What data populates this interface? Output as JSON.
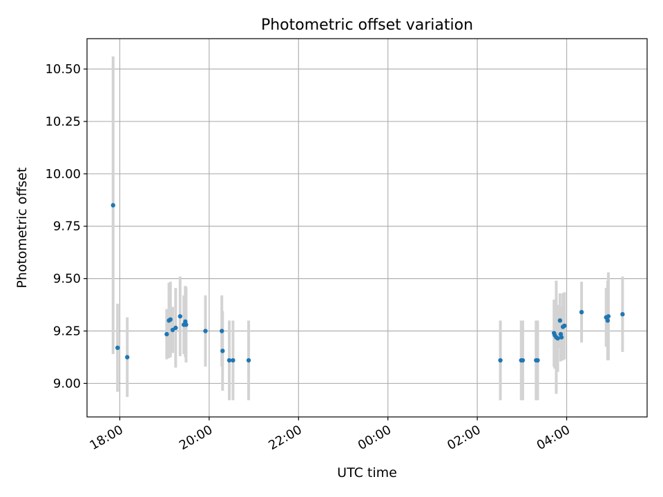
{
  "chart_data": {
    "type": "scatter",
    "title": "Photometric offset variation",
    "xlabel": "UTC time",
    "ylabel": "Photometric offset",
    "x_axis": {
      "kind": "time",
      "start": "2000-01-01T17:16",
      "end": "2000-01-02T05:48",
      "ticks": [
        {
          "t": "2000-01-01T18:00",
          "label": "18:00"
        },
        {
          "t": "2000-01-01T20:00",
          "label": "20:00"
        },
        {
          "t": "2000-01-01T22:00",
          "label": "22:00"
        },
        {
          "t": "2000-01-02T00:00",
          "label": "00:00"
        },
        {
          "t": "2000-01-02T02:00",
          "label": "02:00"
        },
        {
          "t": "2000-01-02T04:00",
          "label": "04:00"
        }
      ]
    },
    "ylim": [
      8.84,
      10.645
    ],
    "yticks": [
      {
        "v": 9.0,
        "label": "9.00"
      },
      {
        "v": 9.25,
        "label": "9.25"
      },
      {
        "v": 9.5,
        "label": "9.50"
      },
      {
        "v": 9.75,
        "label": "9.75"
      },
      {
        "v": 10.0,
        "label": "10.00"
      },
      {
        "v": 10.25,
        "label": "10.25"
      },
      {
        "v": 10.5,
        "label": "10.50"
      }
    ],
    "grid": true,
    "marker_color": "#1f77b4",
    "errorbar_color": "#d3d3d3",
    "points": [
      {
        "t": "2000-01-01T17:51",
        "y": 9.85,
        "err": 0.71
      },
      {
        "t": "2000-01-01T17:57",
        "y": 9.17,
        "err": 0.21
      },
      {
        "t": "2000-01-01T18:10",
        "y": 9.125,
        "err": 0.19
      },
      {
        "t": "2000-01-01T19:03",
        "y": 9.235,
        "err": 0.12
      },
      {
        "t": "2000-01-01T19:06",
        "y": 9.3,
        "err": 0.18
      },
      {
        "t": "2000-01-01T19:08",
        "y": 9.305,
        "err": 0.18
      },
      {
        "t": "2000-01-01T19:11",
        "y": 9.255,
        "err": 0.11
      },
      {
        "t": "2000-01-01T19:15",
        "y": 9.265,
        "err": 0.19
      },
      {
        "t": "2000-01-01T19:21",
        "y": 9.32,
        "err": 0.19
      },
      {
        "t": "2000-01-01T19:26",
        "y": 9.28,
        "err": 0.14
      },
      {
        "t": "2000-01-01T19:28",
        "y": 9.295,
        "err": 0.17
      },
      {
        "t": "2000-01-01T19:29",
        "y": 9.28,
        "err": 0.18
      },
      {
        "t": "2000-01-01T19:55",
        "y": 9.25,
        "err": 0.17
      },
      {
        "t": "2000-01-01T20:17",
        "y": 9.25,
        "err": 0.17
      },
      {
        "t": "2000-01-01T20:18",
        "y": 9.155,
        "err": 0.19
      },
      {
        "t": "2000-01-01T20:27",
        "y": 9.11,
        "err": 0.19
      },
      {
        "t": "2000-01-01T20:32",
        "y": 9.11,
        "err": 0.19
      },
      {
        "t": "2000-01-01T20:53",
        "y": 9.11,
        "err": 0.19
      },
      {
        "t": "2000-01-02T02:31",
        "y": 9.11,
        "err": 0.19
      },
      {
        "t": "2000-01-02T02:59",
        "y": 9.11,
        "err": 0.19
      },
      {
        "t": "2000-01-02T03:01",
        "y": 9.11,
        "err": 0.19
      },
      {
        "t": "2000-01-02T03:19",
        "y": 9.11,
        "err": 0.19
      },
      {
        "t": "2000-01-02T03:21",
        "y": 9.11,
        "err": 0.19
      },
      {
        "t": "2000-01-02T03:43",
        "y": 9.24,
        "err": 0.16
      },
      {
        "t": "2000-01-02T03:44",
        "y": 9.23,
        "err": 0.16
      },
      {
        "t": "2000-01-02T03:46",
        "y": 9.22,
        "err": 0.27
      },
      {
        "t": "2000-01-02T03:48",
        "y": 9.215,
        "err": 0.16
      },
      {
        "t": "2000-01-02T03:51",
        "y": 9.3,
        "err": 0.13
      },
      {
        "t": "2000-01-02T03:52",
        "y": 9.235,
        "err": 0.13
      },
      {
        "t": "2000-01-02T03:53",
        "y": 9.22,
        "err": 0.11
      },
      {
        "t": "2000-01-02T03:55",
        "y": 9.27,
        "err": 0.16
      },
      {
        "t": "2000-01-02T03:57",
        "y": 9.275,
        "err": 0.16
      },
      {
        "t": "2000-01-02T04:20",
        "y": 9.34,
        "err": 0.145
      },
      {
        "t": "2000-01-02T04:53",
        "y": 9.315,
        "err": 0.14
      },
      {
        "t": "2000-01-02T04:55",
        "y": 9.3,
        "err": 0.19
      },
      {
        "t": "2000-01-02T04:56",
        "y": 9.32,
        "err": 0.21
      },
      {
        "t": "2000-01-02T05:15",
        "y": 9.33,
        "err": 0.18
      }
    ]
  }
}
